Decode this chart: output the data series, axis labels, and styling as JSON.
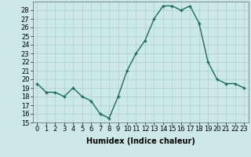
{
  "x": [
    0,
    1,
    2,
    3,
    4,
    5,
    6,
    7,
    8,
    9,
    10,
    11,
    12,
    13,
    14,
    15,
    16,
    17,
    18,
    19,
    20,
    21,
    22,
    23
  ],
  "y": [
    19.5,
    18.5,
    18.5,
    18.0,
    19.0,
    18.0,
    17.5,
    16.0,
    15.5,
    18.0,
    21.0,
    23.0,
    24.5,
    27.0,
    28.5,
    28.5,
    28.0,
    28.5,
    26.5,
    22.0,
    20.0,
    19.5,
    19.5,
    19.0
  ],
  "ylim": [
    15,
    29
  ],
  "yticks": [
    15,
    16,
    17,
    18,
    19,
    20,
    21,
    22,
    23,
    24,
    25,
    26,
    27,
    28
  ],
  "xlabel": "Humidex (Indice chaleur)",
  "line_color": "#1a6b5a",
  "marker_color": "#1a6b5a",
  "bg_color": "#cce8e8",
  "grid_color": "#aacfcf",
  "xlabel_fontsize": 7,
  "tick_fontsize": 6,
  "line_width": 1.0,
  "marker_size": 3.5,
  "marker_style": "+"
}
